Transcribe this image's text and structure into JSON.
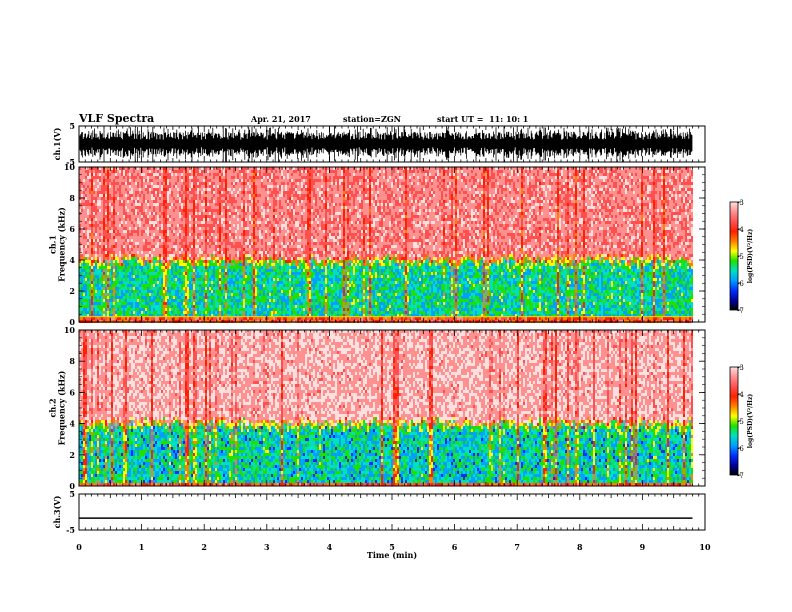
{
  "header": {
    "title": "VLF Spectra",
    "date": "Apr. 21, 2017",
    "station": "station=ZGN",
    "start": "start UT =  11: 10: 1"
  },
  "chart_data": [
    {
      "type": "line",
      "panel": "ch1-waveform",
      "ylabel": "ch.1(V)",
      "ylim": [
        -5,
        5
      ],
      "yticks": [
        "5",
        "-5"
      ],
      "xlim": [
        0,
        10
      ],
      "series": [
        {
          "values": "noisy waveform spanning approx. -5 to 5 V",
          "color": "#000000"
        }
      ]
    },
    {
      "type": "heatmap",
      "panel": "ch1-spectrogram",
      "ylabel": "ch.1\nFrequency (kHz)",
      "ylim": [
        0,
        10
      ],
      "yticks": [
        "0",
        "2",
        "4",
        "6",
        "8",
        "10"
      ],
      "xlim": [
        0,
        10
      ],
      "data_extent_min": 9.8,
      "band_boundary_khz": 4.2,
      "high_band": {
        "from_khz": 4.2,
        "to_khz": 10,
        "log_psd": -3.6
      },
      "low_band": {
        "from_khz": 0.4,
        "to_khz": 4.2,
        "log_psd": -5.7
      },
      "low_line_khz": 0.35,
      "colorbar": {
        "label": "log(PSD)(V²/Hz)",
        "range": [
          -7,
          -3
        ],
        "ticks": [
          "-3",
          "-4",
          "-5",
          "-6",
          "-7"
        ]
      }
    },
    {
      "type": "heatmap",
      "panel": "ch2-spectrogram",
      "ylabel": "ch.2\nFrequency (kHz)",
      "ylim": [
        0,
        10
      ],
      "yticks": [
        "0",
        "2",
        "4",
        "6",
        "8",
        "10"
      ],
      "xlim": [
        0,
        10
      ],
      "data_extent_min": 9.8,
      "band_boundary_khz": 4.2,
      "high_band": {
        "from_khz": 4.2,
        "to_khz": 10,
        "log_psd": -3.4
      },
      "low_band": {
        "from_khz": 0.3,
        "to_khz": 4.2,
        "log_psd": -5.8
      },
      "colorbar": {
        "label": "log(PSD)(V²/Hz)",
        "range": [
          -7,
          -3
        ],
        "ticks": [
          "-3",
          "-4",
          "-5",
          "-6",
          "-7"
        ]
      }
    },
    {
      "type": "line",
      "panel": "ch3-waveform",
      "ylabel": "ch.3(V)",
      "ylim": [
        -5,
        5
      ],
      "yticks": [
        "5",
        "-5"
      ],
      "xlim": [
        0,
        10
      ],
      "series": [
        {
          "values": [
            -1.7,
            -1.7
          ],
          "x": [
            0,
            9.8
          ],
          "color": "#000000"
        }
      ]
    }
  ],
  "xaxis": {
    "label": "Time (min)",
    "ticks": [
      "0",
      "1",
      "2",
      "3",
      "4",
      "5",
      "6",
      "7",
      "8",
      "9",
      "10"
    ],
    "range": [
      0,
      10
    ]
  },
  "colormap": [
    "#000000",
    "#0000a0",
    "#0030ff",
    "#00a0ff",
    "#00e0c0",
    "#20e000",
    "#ffff00",
    "#ff8000",
    "#ff2000",
    "#ff5050",
    "#ff9090",
    "#ffe0e0"
  ]
}
